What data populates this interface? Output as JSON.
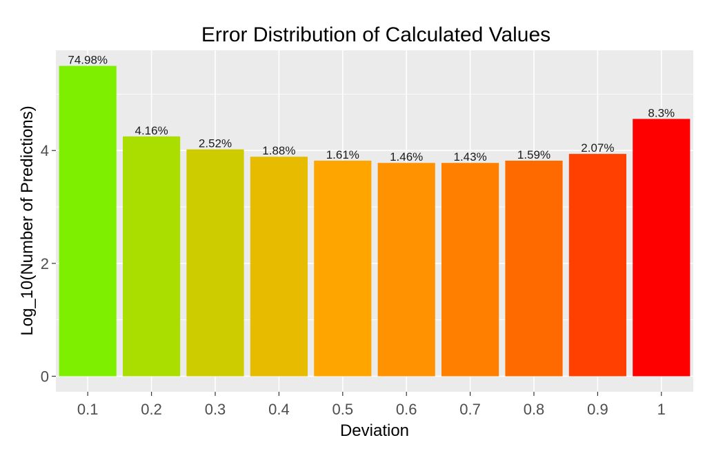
{
  "chart_data": {
    "type": "bar",
    "title": "Error Distribution of Calculated Values",
    "xlabel": "Deviation",
    "ylabel": "Log_10(Number of Predictions)",
    "categories": [
      "0.1",
      "0.2",
      "0.3",
      "0.4",
      "0.5",
      "0.6",
      "0.7",
      "0.8",
      "0.9",
      "1"
    ],
    "values": [
      5.5,
      4.25,
      4.02,
      3.89,
      3.82,
      3.78,
      3.78,
      3.82,
      3.94,
      4.56
    ],
    "labels": [
      "74.98%",
      "4.16%",
      "2.52%",
      "1.88%",
      "1.61%",
      "1.46%",
      "1.43%",
      "1.59%",
      "2.07%",
      "8.3%"
    ],
    "colors": [
      "#7fef00",
      "#aade00",
      "#cccc00",
      "#e6bb00",
      "#ffa500",
      "#ff9200",
      "#ff7f00",
      "#ff6a00",
      "#ff4000",
      "#ff0000"
    ],
    "yticks": [
      0,
      2,
      4
    ],
    "ylim": [
      -0.275,
      5.775
    ],
    "grid": true,
    "legend": "none"
  }
}
